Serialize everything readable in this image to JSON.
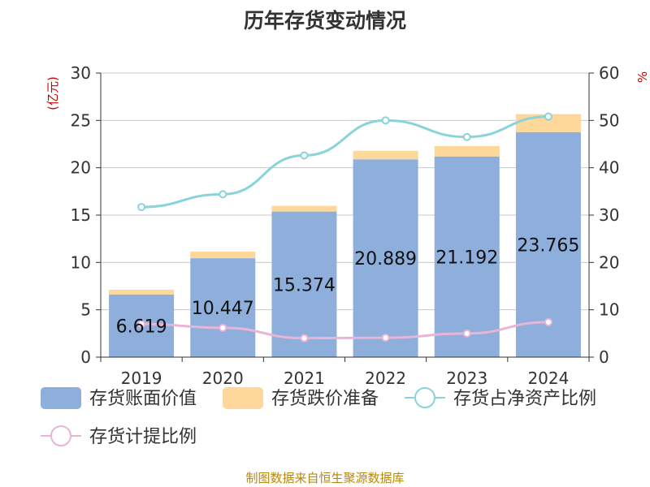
{
  "title": "历年存货变动情况",
  "source": "制图数据来自恒生聚源数据库",
  "chart_data": {
    "type": "bar",
    "title": "历年存货变动情况",
    "categories": [
      "2019",
      "2020",
      "2021",
      "2022",
      "2023",
      "2024"
    ],
    "y_left": {
      "label": "(亿元)",
      "range": [
        0,
        30
      ],
      "ticks": [
        "0",
        "5",
        "10",
        "15",
        "20",
        "25",
        "30"
      ]
    },
    "y_right": {
      "label": "%",
      "range": [
        0,
        60
      ],
      "ticks": [
        "0",
        "10",
        "20",
        "30",
        "40",
        "50",
        "60"
      ]
    },
    "grid": true,
    "legend_position": "bottom",
    "series": [
      {
        "name": "存货账面价值",
        "type": "bar",
        "stack": "inventory",
        "axis": "left",
        "color": "#8eaedc",
        "values": [
          6.619,
          10.447,
          15.374,
          20.889,
          21.192,
          23.765
        ],
        "labels": [
          "6.619",
          "10.447",
          "15.374",
          "20.889",
          "21.192",
          "23.765"
        ]
      },
      {
        "name": "存货跌价准备",
        "type": "bar",
        "stack": "inventory",
        "axis": "left",
        "color": "#fdd89a",
        "values": [
          0.5,
          0.7,
          0.6,
          0.9,
          1.1,
          1.9
        ]
      },
      {
        "name": "存货占净资产比例",
        "type": "line",
        "axis": "right",
        "color": "#88d4d8",
        "values": [
          31.7,
          34.4,
          42.6,
          50.0,
          46.5,
          50.8
        ]
      },
      {
        "name": "存货计提比例",
        "type": "line",
        "axis": "right",
        "color": "#e8b4d8",
        "values": [
          7.0,
          6.2,
          4.0,
          4.1,
          5.0,
          7.4
        ]
      }
    ]
  }
}
